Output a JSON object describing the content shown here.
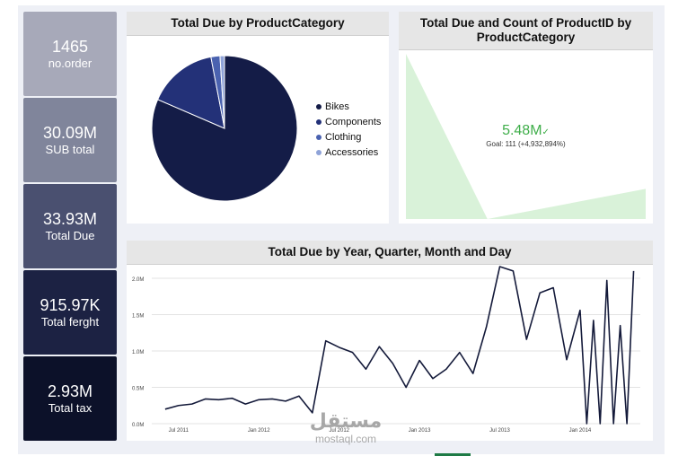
{
  "kpis": [
    {
      "value": "1465",
      "label": "no.order",
      "color": "#a7a9b9"
    },
    {
      "value": "30.09M",
      "label": "SUB total",
      "color": "#80859b"
    },
    {
      "value": "33.93M",
      "label": "Total Due",
      "color": "#4a5070"
    },
    {
      "value": "915.97K",
      "label": "Total ferght",
      "color": "#1c2243"
    },
    {
      "value": "2.93M",
      "label": "Total tax",
      "color": "#0c1129"
    }
  ],
  "pie_card": {
    "title": "Total Due by ProductCategory"
  },
  "kpi_card": {
    "title": "Total Due and Count of ProductID by ProductCategory",
    "value": "5.48M",
    "check": "✓",
    "goal": "Goal: 111 (+4,932,894%)"
  },
  "line_card": {
    "title": "Total Due by Year, Quarter, Month and Day"
  },
  "watermark": {
    "arabic": "مستقل",
    "latin": "mostaql.com"
  },
  "chart_data": [
    {
      "type": "pie",
      "title": "Total Due by ProductCategory",
      "legend_position": "right",
      "categories": [
        "Bikes",
        "Components",
        "Clothing",
        "Accessories"
      ],
      "values": [
        81.5,
        15.5,
        2.0,
        1.0
      ],
      "colors": [
        "#141c47",
        "#233178",
        "#4a62b0",
        "#8fa3d8"
      ]
    },
    {
      "type": "area",
      "title": "Total Due and Count of ProductID by ProductCategory",
      "categories": [
        "Bikes",
        "Components",
        "Clothing",
        "Accessories"
      ],
      "values": [
        5.48,
        0.0,
        0.5,
        1.0
      ],
      "color": "#d9f2d9"
    },
    {
      "type": "line",
      "title": "Total Due by Year, Quarter, Month and Day",
      "xlabel": "",
      "ylabel": "",
      "ylim": [
        0,
        2.0
      ],
      "grid": true,
      "yticks": [
        "0.0M",
        "0.5M",
        "1.0M",
        "1.5M",
        "2.0M"
      ],
      "xticks": [
        {
          "label": "Jul 2011",
          "x": 6
        },
        {
          "label": "Jan 2012",
          "x": 12
        },
        {
          "label": "Jul 2012",
          "x": 18
        },
        {
          "label": "Jan 2013",
          "x": 24
        },
        {
          "label": "Jul 2013",
          "x": 30
        },
        {
          "label": "Jan 2014",
          "x": 36
        }
      ],
      "x": [
        5,
        6,
        7,
        8,
        9,
        10,
        11,
        12,
        13,
        14,
        15,
        16,
        17,
        18,
        19,
        20,
        21,
        22,
        23,
        24,
        25,
        26,
        27,
        28,
        29,
        30,
        31,
        32,
        33,
        34,
        35,
        36,
        36.5,
        37,
        37.5,
        38,
        38.5,
        39,
        39.5,
        40
      ],
      "values": [
        0.2,
        0.25,
        0.27,
        0.34,
        0.33,
        0.35,
        0.27,
        0.33,
        0.34,
        0.31,
        0.38,
        0.15,
        1.14,
        1.05,
        0.98,
        0.75,
        1.06,
        0.83,
        0.5,
        0.87,
        0.62,
        0.75,
        0.98,
        0.69,
        1.33,
        2.16,
        2.1,
        1.16,
        1.8,
        1.87,
        0.88,
        1.56,
        0.0,
        1.42,
        0.0,
        1.97,
        0.0,
        1.35,
        0.0,
        2.1
      ]
    }
  ]
}
